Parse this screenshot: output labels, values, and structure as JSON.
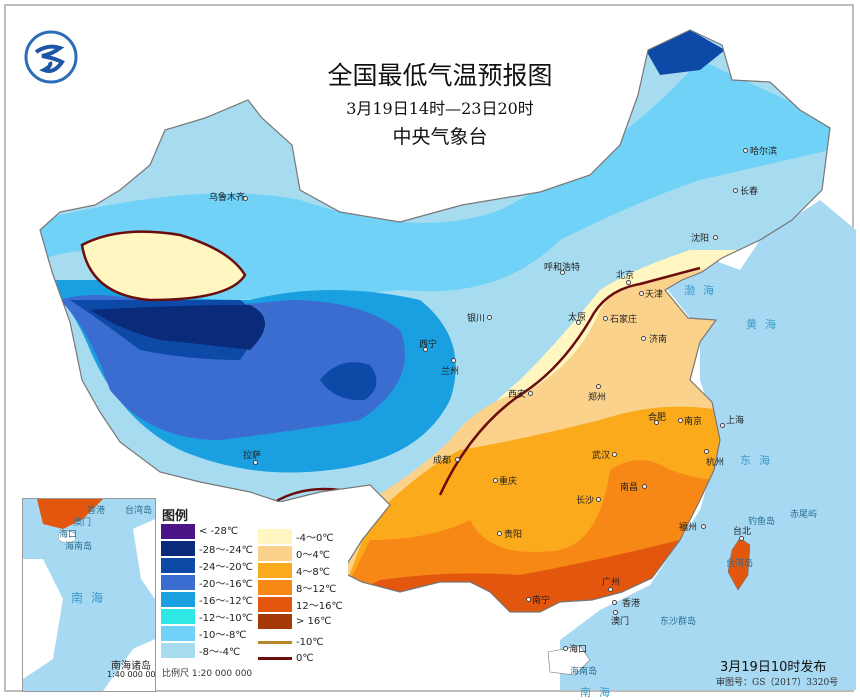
{
  "header": {
    "title": "全国最低气温预报图",
    "subtitle": "3月19日14时—23日20时",
    "agency": "中央气象台"
  },
  "legend": {
    "title": "图例",
    "items": [
      {
        "label": "< -28℃",
        "color": "#4b1385"
      },
      {
        "label": "-28～-24℃",
        "color": "#0a2a7a"
      },
      {
        "label": "-24～-20℃",
        "color": "#0d4aa8"
      },
      {
        "label": "-20～-16℃",
        "color": "#3b6cd0"
      },
      {
        "label": "-16～-12℃",
        "color": "#1a9fe0"
      },
      {
        "label": "-12～-10℃",
        "color": "#2ee8e6"
      },
      {
        "label": "-10～-8℃",
        "color": "#6fd2f6"
      },
      {
        "label": "-8～-4℃",
        "color": "#a7dcf0"
      },
      {
        "label": "-4～0℃",
        "color": "#fff6c2"
      },
      {
        "label": "0～4℃",
        "color": "#fbd28c"
      },
      {
        "label": "4～8℃",
        "color": "#fbaa1c"
      },
      {
        "label": "8～12℃",
        "color": "#f88816"
      },
      {
        "label": "12～16℃",
        "color": "#e3560e"
      },
      {
        "label": "> 16℃",
        "color": "#a53a08"
      }
    ],
    "lines": [
      {
        "label": "-10℃",
        "color": "#b8862a"
      },
      {
        "label": "0℃",
        "color": "#6b0d0d"
      }
    ],
    "scale": "比例尺   1:20 000 000"
  },
  "cities": [
    "乌鲁木齐",
    "呼和浩特",
    "北京",
    "天津",
    "石家庄",
    "太原",
    "济南",
    "银川",
    "兰州",
    "西宁",
    "西安",
    "郑州",
    "合肥",
    "南京",
    "上海",
    "杭州",
    "武汉",
    "南昌",
    "长沙",
    "重庆",
    "成都",
    "贵阳",
    "福州",
    "台北",
    "广州",
    "南宁",
    "香港",
    "澳门",
    "海口",
    "拉萨",
    "哈尔滨",
    "长春",
    "沈阳"
  ],
  "seas": [
    "渤海",
    "黄海",
    "东海",
    "南海"
  ],
  "islands": [
    "台湾岛",
    "钓鱼岛",
    "赤尾屿",
    "东沙群岛",
    "海南岛"
  ],
  "inset": {
    "labels": [
      "香港",
      "台湾岛",
      "澳门",
      "海口",
      "海南岛",
      "南海"
    ],
    "title": "南海诸岛",
    "scale": "1:40 000 000"
  },
  "footer": {
    "issued": "3月19日10时发布",
    "approval": "审图号：GS（2017）3320号"
  },
  "colors": {
    "sea": "#a7d9f3",
    "land_foreign": "#ffffff",
    "border": "#777777"
  }
}
